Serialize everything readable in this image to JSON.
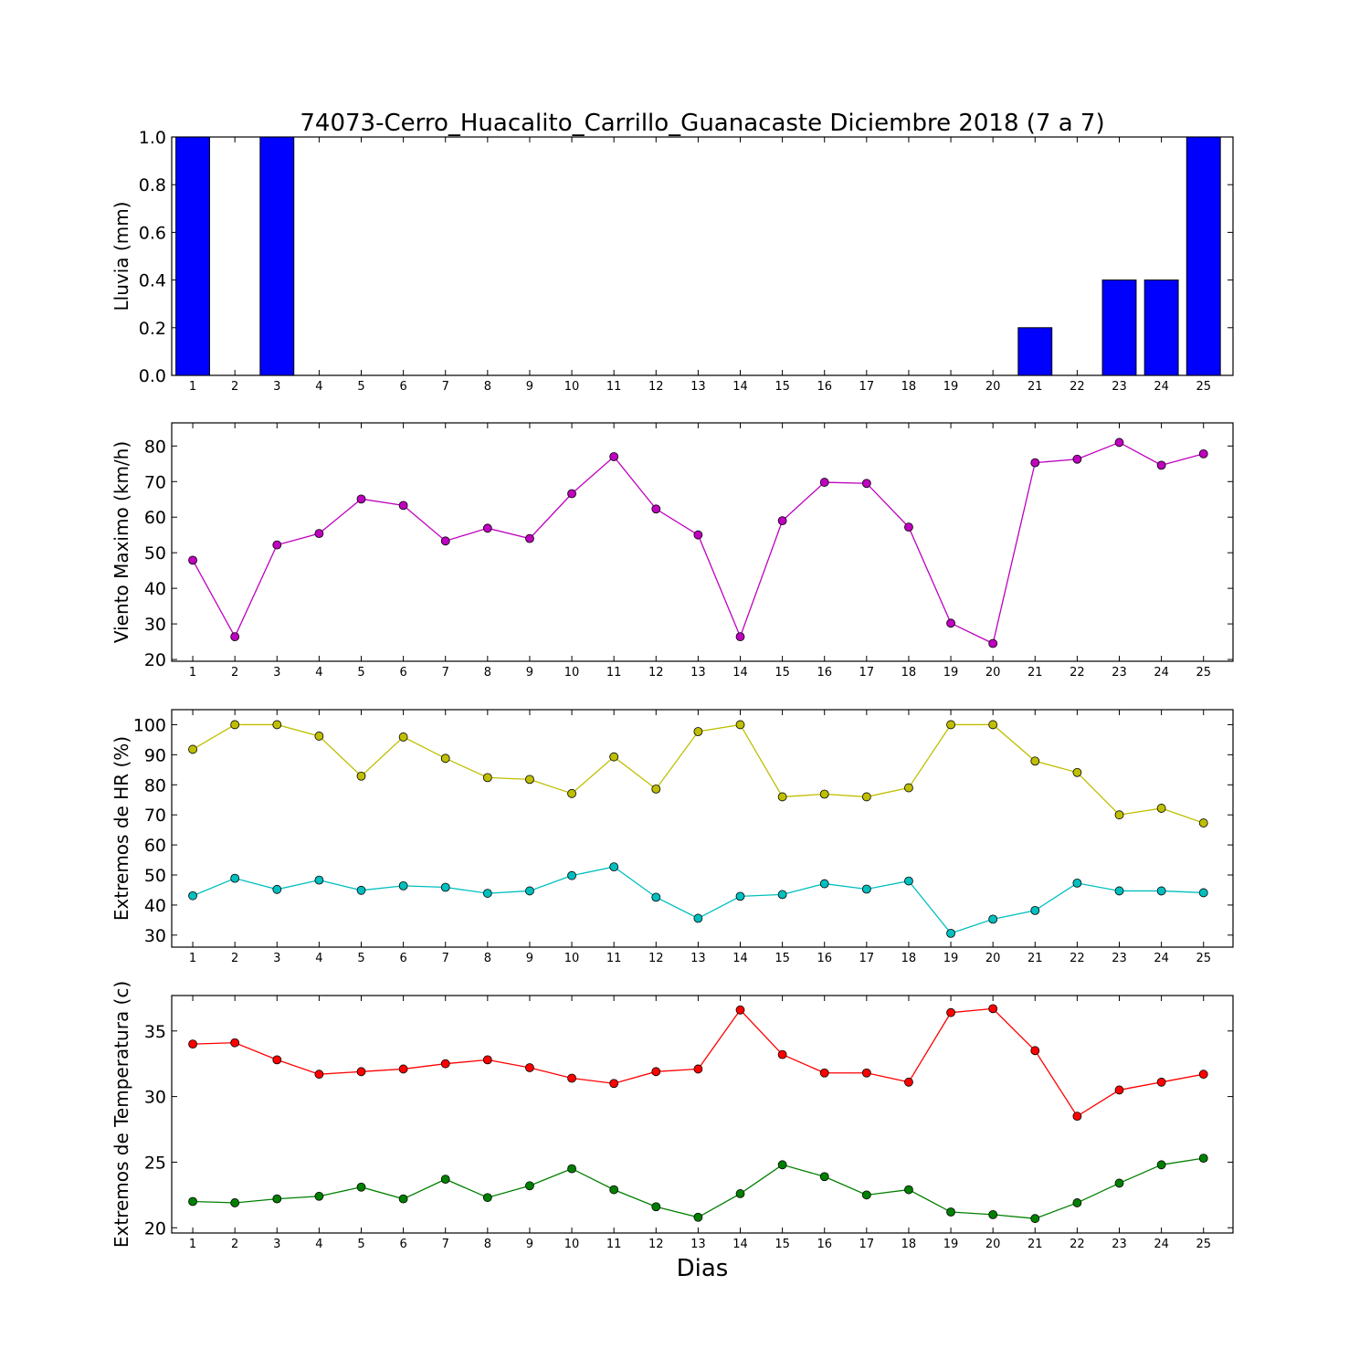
{
  "chart_data": [
    {
      "type": "bar",
      "title": "74073-Cerro_Huacalito_Carrillo_Guanacaste Diciembre 2018  (7 a 7)",
      "ylabel": "Lluvia (mm)",
      "xlabel": "",
      "x": [
        1,
        2,
        3,
        4,
        5,
        6,
        7,
        8,
        9,
        10,
        11,
        12,
        13,
        14,
        15,
        16,
        17,
        18,
        19,
        20,
        21,
        22,
        23,
        24,
        25
      ],
      "ylim": [
        0,
        1.0
      ],
      "yticks": [
        "0.0",
        "0.2",
        "0.4",
        "0.6",
        "0.8",
        "1.0"
      ],
      "series": [
        {
          "color": "#0000ff",
          "values": [
            1.0,
            0,
            1.0,
            0,
            0,
            0,
            0,
            0,
            0,
            0,
            0,
            0,
            0,
            0,
            0,
            0,
            0,
            0,
            0,
            0,
            0.2,
            0,
            0.4,
            0.4,
            1.0
          ]
        }
      ]
    },
    {
      "type": "line",
      "title": "",
      "ylabel": "Viento Maximo (km/h)",
      "xlabel": "",
      "x": [
        1,
        2,
        3,
        4,
        5,
        6,
        7,
        8,
        9,
        10,
        11,
        12,
        13,
        14,
        15,
        16,
        17,
        18,
        19,
        20,
        21,
        22,
        23,
        24,
        25
      ],
      "ylim": [
        19.5,
        86.5
      ],
      "yticks": [
        "20",
        "30",
        "40",
        "50",
        "60",
        "70",
        "80"
      ],
      "series": [
        {
          "color": "#bf00bf",
          "values": [
            47.9,
            26.4,
            52.2,
            55.4,
            65.1,
            63.3,
            53.3,
            56.9,
            54.0,
            66.6,
            77.0,
            62.3,
            55.0,
            26.4,
            59.0,
            69.8,
            69.5,
            57.2,
            30.2,
            24.5,
            75.3,
            76.3,
            81.0,
            74.6,
            77.8
          ]
        }
      ]
    },
    {
      "type": "line",
      "title": "",
      "ylabel": "Extremos de HR (%)",
      "xlabel": "",
      "x": [
        1,
        2,
        3,
        4,
        5,
        6,
        7,
        8,
        9,
        10,
        11,
        12,
        13,
        14,
        15,
        16,
        17,
        18,
        19,
        20,
        21,
        22,
        23,
        24,
        25
      ],
      "ylim": [
        26,
        105
      ],
      "yticks": [
        "30",
        "40",
        "50",
        "60",
        "70",
        "80",
        "90",
        "100"
      ],
      "series": [
        {
          "color": "#bfbf00",
          "values": [
            91.8,
            100,
            100,
            96.2,
            82.9,
            95.9,
            88.8,
            82.4,
            81.8,
            77.1,
            89.3,
            78.6,
            97.7,
            100,
            76.0,
            76.9,
            76.0,
            79.0,
            100,
            100,
            87.9,
            84.1,
            70.0,
            72.2,
            67.3
          ]
        },
        {
          "color": "#00bfbf",
          "values": [
            43.1,
            48.9,
            45.2,
            48.3,
            44.9,
            46.4,
            45.9,
            43.9,
            44.7,
            49.8,
            52.7,
            42.6,
            35.6,
            42.9,
            43.5,
            47.1,
            45.3,
            48.0,
            30.6,
            35.3,
            38.2,
            47.3,
            44.7,
            44.7,
            44.1
          ]
        }
      ]
    },
    {
      "type": "line",
      "title": "",
      "ylabel": "Extremos de Temperatura (c)",
      "xlabel": "Dias",
      "x": [
        1,
        2,
        3,
        4,
        5,
        6,
        7,
        8,
        9,
        10,
        11,
        12,
        13,
        14,
        15,
        16,
        17,
        18,
        19,
        20,
        21,
        22,
        23,
        24,
        25
      ],
      "ylim": [
        19.6,
        37.7
      ],
      "yticks": [
        "20",
        "25",
        "30",
        "35"
      ],
      "series": [
        {
          "color": "#ff0000",
          "values": [
            34.0,
            34.1,
            32.8,
            31.7,
            31.9,
            32.1,
            32.5,
            32.8,
            32.2,
            31.4,
            31.0,
            31.9,
            32.1,
            36.6,
            33.2,
            31.8,
            31.8,
            31.1,
            36.4,
            36.7,
            33.5,
            28.5,
            30.5,
            31.1,
            31.7
          ]
        },
        {
          "color": "#008000",
          "values": [
            22.0,
            21.9,
            22.2,
            22.4,
            23.1,
            22.2,
            23.7,
            22.3,
            23.2,
            24.5,
            22.9,
            21.6,
            20.8,
            22.6,
            24.8,
            23.9,
            22.5,
            22.9,
            21.2,
            21.0,
            20.7,
            21.9,
            23.4,
            24.8,
            25.3
          ]
        }
      ]
    }
  ]
}
